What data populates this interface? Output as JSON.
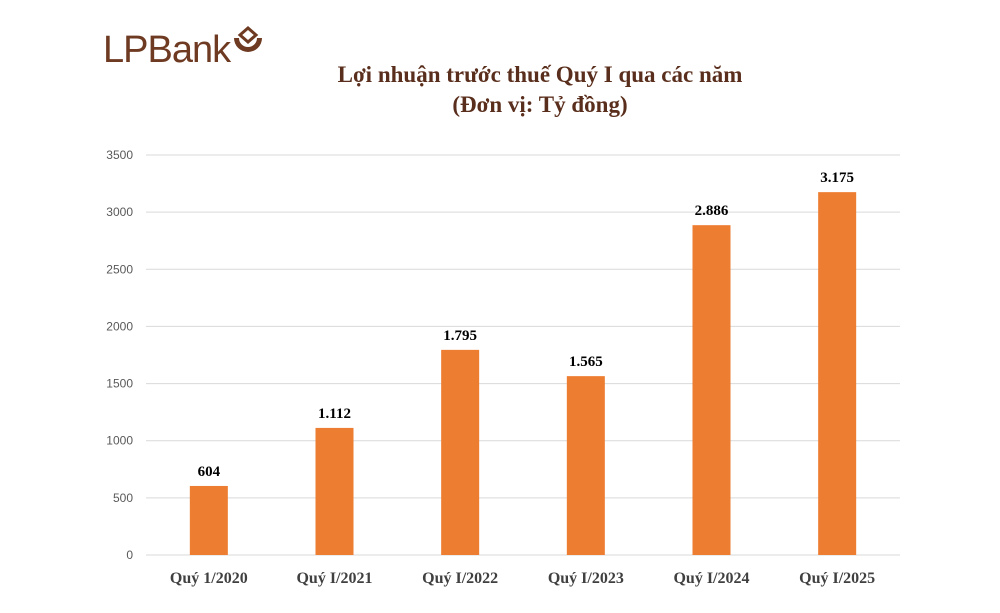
{
  "brand": {
    "logo_text": "LPBank",
    "color": "#6e3a22"
  },
  "chart_data": {
    "type": "bar",
    "title": "Lợi nhuận trước thuế Quý I qua các năm",
    "subtitle": "(Đơn vị: Tỷ đồng)",
    "categories": [
      "Quý 1/2020",
      "Quý I/2021",
      "Quý I/2022",
      "Quý I/2023",
      "Quý I/2024",
      "Quý I/2025"
    ],
    "values": [
      604,
      1112,
      1795,
      1565,
      2886,
      3175
    ],
    "data_labels": [
      "604",
      "1.112",
      "1.795",
      "1.565",
      "2.886",
      "3.175"
    ],
    "ylim": [
      0,
      3500
    ],
    "yticks": [
      0,
      500,
      1000,
      1500,
      2000,
      2500,
      3000,
      3500
    ],
    "grid": true,
    "bar_color": "#ed7d31",
    "xlabel": "",
    "ylabel": ""
  }
}
